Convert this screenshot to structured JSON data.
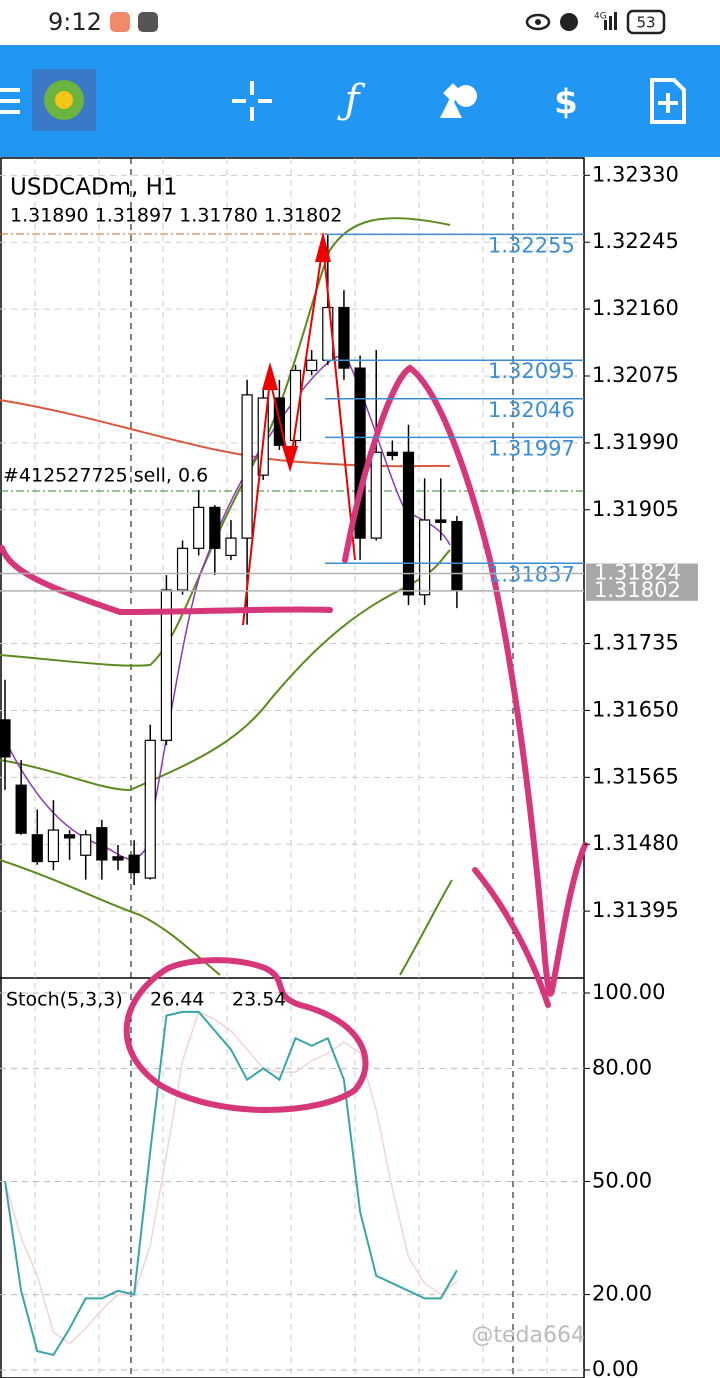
{
  "status_bar": {
    "time": "9:12",
    "network": "4G",
    "battery": "53"
  },
  "chart_data": {
    "type": "candlestick",
    "title": "USDCADm, H1",
    "ohlc_label": "1.31890 1.31897 1.31780 1.31802",
    "open": [
      1.31638,
      1.31555,
      1.31492,
      1.31458,
      1.31492,
      1.31466,
      1.31501,
      1.31464,
      1.31466,
      1.31437,
      1.31612,
      1.31803,
      1.31856,
      1.31908,
      1.31847,
      1.31869,
      1.31949,
      1.32047,
      1.31993,
      1.32082,
      1.32095,
      1.32162,
      1.32085,
      1.31869,
      1.31978,
      1.31978,
      1.31797,
      1.31892,
      1.3189
    ],
    "high": [
      1.31689,
      1.31587,
      1.31524,
      1.31536,
      1.31498,
      1.31498,
      1.31511,
      1.31479,
      1.31485,
      1.31632,
      1.31822,
      1.31866,
      1.3193,
      1.31911,
      1.31892,
      1.3207,
      1.32057,
      1.3207,
      1.32089,
      1.32108,
      1.32254,
      1.32184,
      1.32101,
      1.32108,
      1.31993,
      1.32013,
      1.31945,
      1.31945,
      1.31897
    ],
    "low": [
      1.31549,
      1.31492,
      1.31454,
      1.31447,
      1.3146,
      1.31435,
      1.31435,
      1.31447,
      1.31428,
      1.31435,
      1.31606,
      1.31797,
      1.31847,
      1.31822,
      1.31841,
      1.31759,
      1.31943,
      1.31981,
      1.31981,
      1.32076,
      1.32089,
      1.3207,
      1.31841,
      1.31866,
      1.31968,
      1.31784,
      1.31784,
      1.31866,
      1.3178
    ],
    "close": [
      1.31591,
      1.31494,
      1.31458,
      1.31498,
      1.31488,
      1.31492,
      1.3146,
      1.3146,
      1.31444,
      1.31612,
      1.31803,
      1.31856,
      1.31908,
      1.31856,
      1.31869,
      1.32051,
      1.32047,
      1.31987,
      1.32082,
      1.32095,
      1.32162,
      1.32085,
      1.31869,
      1.31978,
      1.31974,
      1.31797,
      1.31892,
      1.31889,
      1.31802
    ],
    "bull_color": "#ffffff",
    "bear_color": "#000000",
    "ylim": [
      1.3131,
      1.32352
    ],
    "yticks": [
      {
        "value": 1.3233,
        "label": "1.32330"
      },
      {
        "value": 1.32245,
        "label": "1.32245"
      },
      {
        "value": 1.3216,
        "label": "1.32160"
      },
      {
        "value": 1.32075,
        "label": "1.32075"
      },
      {
        "value": 1.3199,
        "label": "1.31990"
      },
      {
        "value": 1.31905,
        "label": "1.31905"
      },
      {
        "value": 1.31735,
        "label": "1.31735"
      },
      {
        "value": 1.3165,
        "label": "1.31650"
      },
      {
        "value": 1.31565,
        "label": "1.31565"
      },
      {
        "value": 1.3148,
        "label": "1.31480"
      },
      {
        "value": 1.31395,
        "label": "1.31395"
      }
    ],
    "grid": true,
    "levels": [
      1.32255,
      1.32095,
      1.32046,
      1.31997,
      1.31837
    ],
    "level_color": "#3d8ed0",
    "order_label": "#412527725 sell, 0.6",
    "ask": 1.31824,
    "bid": 1.31802
  },
  "indicator": {
    "type": "line",
    "name": "Stoch(5,3,3)",
    "ylim": [
      0,
      100
    ],
    "yticks": [
      {
        "value": 100,
        "label": "100.00"
      },
      {
        "value": 80,
        "label": "80.00"
      },
      {
        "value": 50,
        "label": "50.00"
      },
      {
        "value": 20,
        "label": "20.00"
      },
      {
        "value": 0,
        "label": "0.00"
      }
    ],
    "series": [
      {
        "color": "#3aa5a8",
        "values": [
          50,
          21,
          5,
          4,
          11,
          19,
          19,
          21,
          20,
          58,
          94,
          95,
          95,
          90,
          85,
          77,
          80,
          77,
          88,
          86,
          88,
          77,
          42,
          25,
          23,
          21,
          19,
          19,
          26.44
        ]
      },
      {
        "color": "#f2d4d4",
        "values": [
          50,
          35,
          25,
          10,
          7,
          11,
          16,
          20,
          20,
          33,
          57,
          82,
          95,
          93,
          90,
          85,
          80,
          79,
          79,
          82,
          84,
          87,
          84,
          69,
          48,
          30,
          23,
          20,
          23.54
        ]
      }
    ]
  },
  "watermark": "@teda664"
}
